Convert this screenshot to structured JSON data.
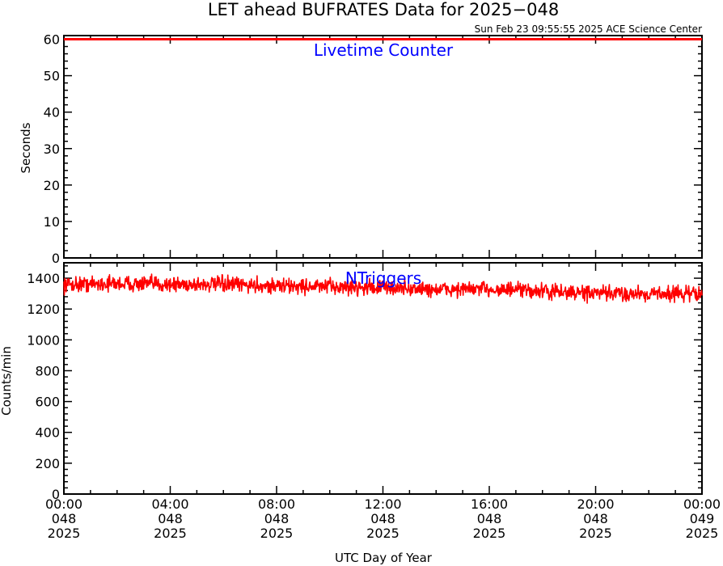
{
  "page": {
    "title": "LET ahead BUFRATES Data for 2025−048",
    "timestamp": "Sun Feb 23 09:55:55 2025 ACE Science Center",
    "xlabel": "UTC Day of Year"
  },
  "colors": {
    "data_line": "#ff0000",
    "annotation": "#0000ff",
    "axes": "#000000",
    "background": "#ffffff"
  },
  "chart_data": [
    {
      "type": "line",
      "panel": "top",
      "annotation": "Livetime Counter",
      "ylabel": "Seconds",
      "ylim": [
        0,
        61
      ],
      "yticks": [
        0,
        10,
        20,
        30,
        40,
        50,
        60
      ],
      "xlim": [
        0,
        24
      ],
      "series": [
        {
          "x_hours": [
            0,
            24
          ],
          "values": [
            60,
            60
          ]
        }
      ]
    },
    {
      "type": "line",
      "panel": "bottom",
      "annotation": "NTriggers",
      "ylabel": "Counts/min",
      "ylim": [
        0,
        1500
      ],
      "yticks": [
        0,
        200,
        400,
        600,
        800,
        1000,
        1200,
        1400
      ],
      "xlim": [
        0,
        24
      ],
      "series": [
        {
          "x_hours": [
            0,
            2,
            4,
            6,
            8,
            10,
            12,
            14,
            16,
            18,
            20,
            22,
            24
          ],
          "values": [
            1360,
            1365,
            1360,
            1360,
            1350,
            1345,
            1340,
            1325,
            1330,
            1315,
            1300,
            1300,
            1300
          ],
          "noise_amplitude": 55
        }
      ]
    }
  ],
  "x_axis": {
    "ticks": [
      {
        "hours": 0,
        "time": "00:00",
        "doy": "048",
        "year": "2025"
      },
      {
        "hours": 4,
        "time": "04:00",
        "doy": "048",
        "year": "2025"
      },
      {
        "hours": 8,
        "time": "08:00",
        "doy": "048",
        "year": "2025"
      },
      {
        "hours": 12,
        "time": "12:00",
        "doy": "048",
        "year": "2025"
      },
      {
        "hours": 16,
        "time": "16:00",
        "doy": "048",
        "year": "2025"
      },
      {
        "hours": 20,
        "time": "20:00",
        "doy": "048",
        "year": "2025"
      },
      {
        "hours": 24,
        "time": "00:00",
        "doy": "049",
        "year": "2025"
      }
    ]
  }
}
